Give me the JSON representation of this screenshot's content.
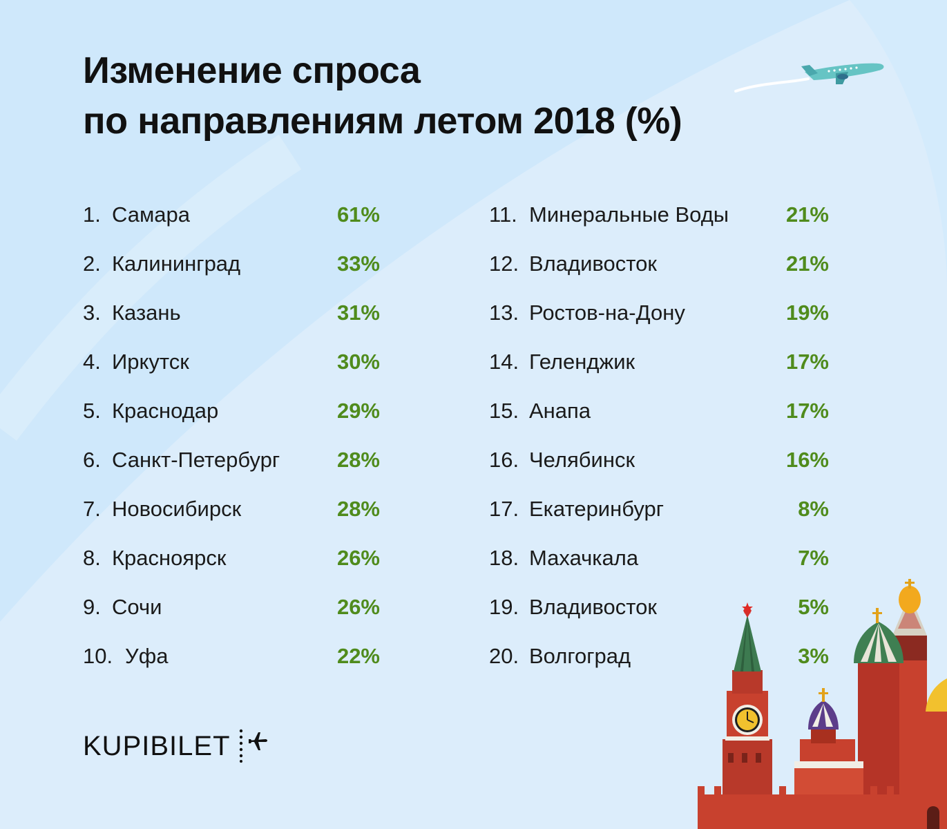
{
  "title": {
    "line1": "Изменение спроса",
    "line2": "по направлениям летом 2018 (%)"
  },
  "brand": {
    "name": "KUPIBILET"
  },
  "colors": {
    "accent_green": "#4f8b1c",
    "text": "#1a1a1a",
    "background": "#cfe8fb"
  },
  "icons": [
    "airplane-icon",
    "kremlin-illustration",
    "logo-plane-icon"
  ],
  "chart_data": {
    "type": "table",
    "title": "Изменение спроса по направлениям летом 2018 (%)",
    "columns": [
      "rank",
      "city",
      "change"
    ],
    "rows": [
      {
        "rank": "1.",
        "city": "Самара",
        "value": "61%"
      },
      {
        "rank": "2.",
        "city": "Калининград",
        "value": "33%"
      },
      {
        "rank": "3.",
        "city": "Казань",
        "value": "31%"
      },
      {
        "rank": "4.",
        "city": "Иркутск",
        "value": "30%"
      },
      {
        "rank": "5.",
        "city": "Краснодар",
        "value": "29%"
      },
      {
        "rank": "6.",
        "city": "Санкт-Петербург",
        "value": "28%"
      },
      {
        "rank": "7.",
        "city": "Новосибирск",
        "value": "28%"
      },
      {
        "rank": "8.",
        "city": "Красноярск",
        "value": "26%"
      },
      {
        "rank": "9.",
        "city": "Сочи",
        "value": "26%"
      },
      {
        "rank": "10.",
        "city": "Уфа",
        "value": "22%"
      },
      {
        "rank": "11.",
        "city": "Минеральные Воды",
        "value": "21%"
      },
      {
        "rank": "12.",
        "city": "Владивосток",
        "value": "21%"
      },
      {
        "rank": "13.",
        "city": "Ростов-на-Дону",
        "value": "19%"
      },
      {
        "rank": "14.",
        "city": "Геленджик",
        "value": "17%"
      },
      {
        "rank": "15.",
        "city": "Анапа",
        "value": "17%"
      },
      {
        "rank": "16.",
        "city": "Челябинск",
        "value": "16%"
      },
      {
        "rank": "17.",
        "city": "Екатеринбург",
        "value": "8%"
      },
      {
        "rank": "18.",
        "city": "Махачкала",
        "value": "7%"
      },
      {
        "rank": "19.",
        "city": "Владивосток",
        "value": "5%"
      },
      {
        "rank": "20.",
        "city": "Волгоград",
        "value": "3%"
      }
    ],
    "values": [
      61,
      33,
      31,
      30,
      29,
      28,
      28,
      26,
      26,
      22,
      21,
      21,
      19,
      17,
      17,
      16,
      8,
      7,
      5,
      3
    ],
    "unit": "%"
  }
}
